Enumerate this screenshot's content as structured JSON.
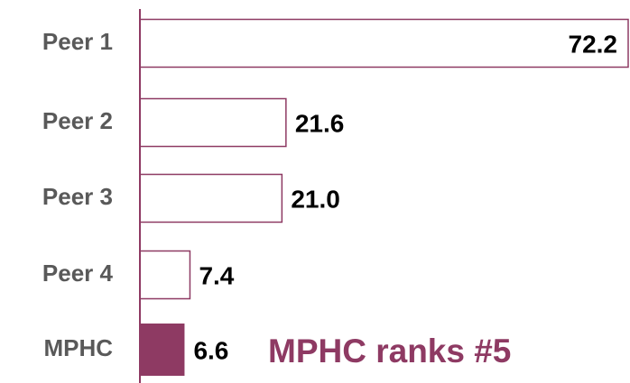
{
  "chart_data": {
    "type": "bar",
    "orientation": "horizontal",
    "categories": [
      "Peer 1",
      "Peer 2",
      "Peer 3",
      "Peer 4",
      "MPHC"
    ],
    "values": [
      72.2,
      21.6,
      21.0,
      7.4,
      6.6
    ],
    "value_labels": [
      "72.2",
      "21.6",
      "21.0",
      "7.4",
      "6.6"
    ],
    "colors": [
      "#ffffff",
      "#ffffff",
      "#ffffff",
      "#ffffff",
      "#8e3a63"
    ],
    "edge_color": "#8e3a63",
    "annotation": "MPHC ranks #5"
  }
}
